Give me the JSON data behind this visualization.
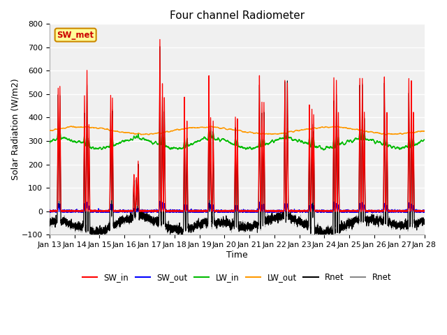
{
  "title": "Four channel Radiometer",
  "xlabel": "Time",
  "ylabel": "Solar Radiation (W/m2)",
  "ylim": [
    -100,
    800
  ],
  "xlim": [
    0,
    15
  ],
  "x_tick_labels": [
    "Jan 13",
    "Jan 14",
    "Jan 15",
    "Jan 16",
    "Jan 17",
    "Jan 18",
    "Jan 19",
    "Jan 20",
    "Jan 21",
    "Jan 22",
    "Jan 23",
    "Jan 24",
    "Jan 25",
    "Jan 26",
    "Jan 27",
    "Jan 28"
  ],
  "annotation_text": "SW_met",
  "annotation_color": "#cc0000",
  "annotation_bg": "#ffff99",
  "annotation_border": "#cc8800",
  "plot_bg_light": "#f5f5f5",
  "plot_bg_dark": "#e8e8e8",
  "colors": {
    "SW_in": "#ff0000",
    "SW_out": "#0000ff",
    "LW_in": "#00bb00",
    "LW_out": "#ff9900",
    "Rnet_black": "#000000",
    "Rnet_gray": "#888888"
  },
  "legend_labels": [
    "SW_in",
    "SW_out",
    "LW_in",
    "LW_out",
    "Rnet",
    "Rnet"
  ],
  "legend_colors": [
    "#ff0000",
    "#0000ff",
    "#00bb00",
    "#ff9900",
    "#000000",
    "#888888"
  ],
  "yticks": [
    -100,
    0,
    100,
    200,
    300,
    400,
    500,
    600,
    700,
    800
  ]
}
